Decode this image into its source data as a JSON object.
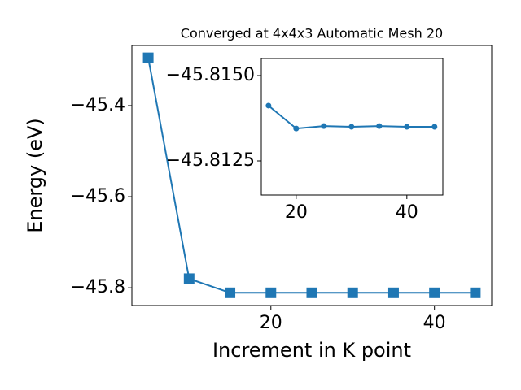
{
  "chart_data": [
    {
      "type": "line",
      "title": "Converged at 4x4x3 Automatic Mesh 20",
      "xlabel": "Increment in K point",
      "ylabel": "Energy (eV)",
      "x": [
        5,
        10,
        15,
        20,
        25,
        30,
        35,
        40,
        45
      ],
      "values": [
        -45.295,
        -45.78,
        -45.811,
        -45.811,
        -45.811,
        -45.811,
        -45.811,
        -45.811,
        -45.811
      ],
      "color": "#1f77b4",
      "marker": "square",
      "xlim": [
        3,
        47
      ],
      "ylim": [
        -45.839,
        -45.268
      ],
      "xticks": [
        20,
        40
      ],
      "yticks": [
        {
          "value": -45.4,
          "label": "−45.4"
        },
        {
          "value": -45.6,
          "label": "−45.6"
        },
        {
          "value": -45.8,
          "label": "−45.8"
        }
      ]
    },
    {
      "type": "line",
      "x": [
        15,
        20,
        25,
        30,
        35,
        40,
        45
      ],
      "values": [
        -45.81412,
        -45.81345,
        -45.81352,
        -45.8135,
        -45.81352,
        -45.8135,
        -45.8135
      ],
      "color": "#1f77b4",
      "marker": "circle",
      "xlim": [
        13.7,
        46.5
      ],
      "ylim": [
        -45.8115,
        -45.8155
      ],
      "xticks": [
        20,
        40
      ],
      "yticks": [
        {
          "value": -45.815,
          "label": "−45.8150"
        },
        {
          "value": -45.8125,
          "label": "−45.8125"
        }
      ]
    }
  ]
}
